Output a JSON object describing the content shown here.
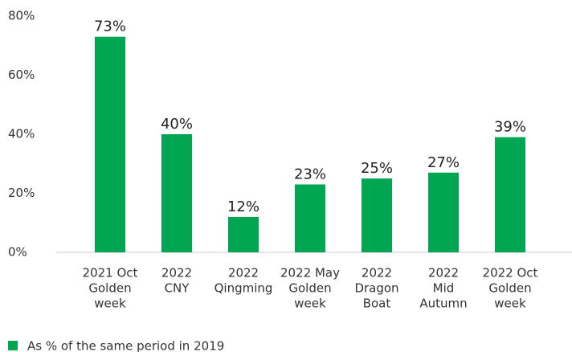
{
  "chart_data": {
    "type": "bar",
    "categories": [
      [
        "2021 Oct",
        "Golden",
        "week"
      ],
      [
        "2022",
        "CNY"
      ],
      [
        "2022",
        "Qingming"
      ],
      [
        "2022 May",
        "Golden",
        "week"
      ],
      [
        "2022",
        "Dragon",
        "Boat"
      ],
      [
        "2022",
        "Mid",
        "Autumn"
      ],
      [
        "2022 Oct",
        "Golden",
        "week"
      ]
    ],
    "series": [
      {
        "name": "As % of the same period in 2019",
        "color": "#00a651",
        "values": [
          73,
          40,
          12,
          23,
          25,
          27,
          39
        ],
        "value_labels": [
          "73%",
          "40%",
          "12%",
          "23%",
          "25%",
          "27%",
          "39%"
        ]
      }
    ],
    "ylim": [
      0,
      80
    ],
    "yticks": [
      {
        "value": 0,
        "label": "0%"
      },
      {
        "value": 20,
        "label": "20%"
      },
      {
        "value": 40,
        "label": "40%"
      },
      {
        "value": 60,
        "label": "60%"
      },
      {
        "value": 80,
        "label": "80%"
      }
    ],
    "grid": false,
    "legend": "bottom-left"
  }
}
